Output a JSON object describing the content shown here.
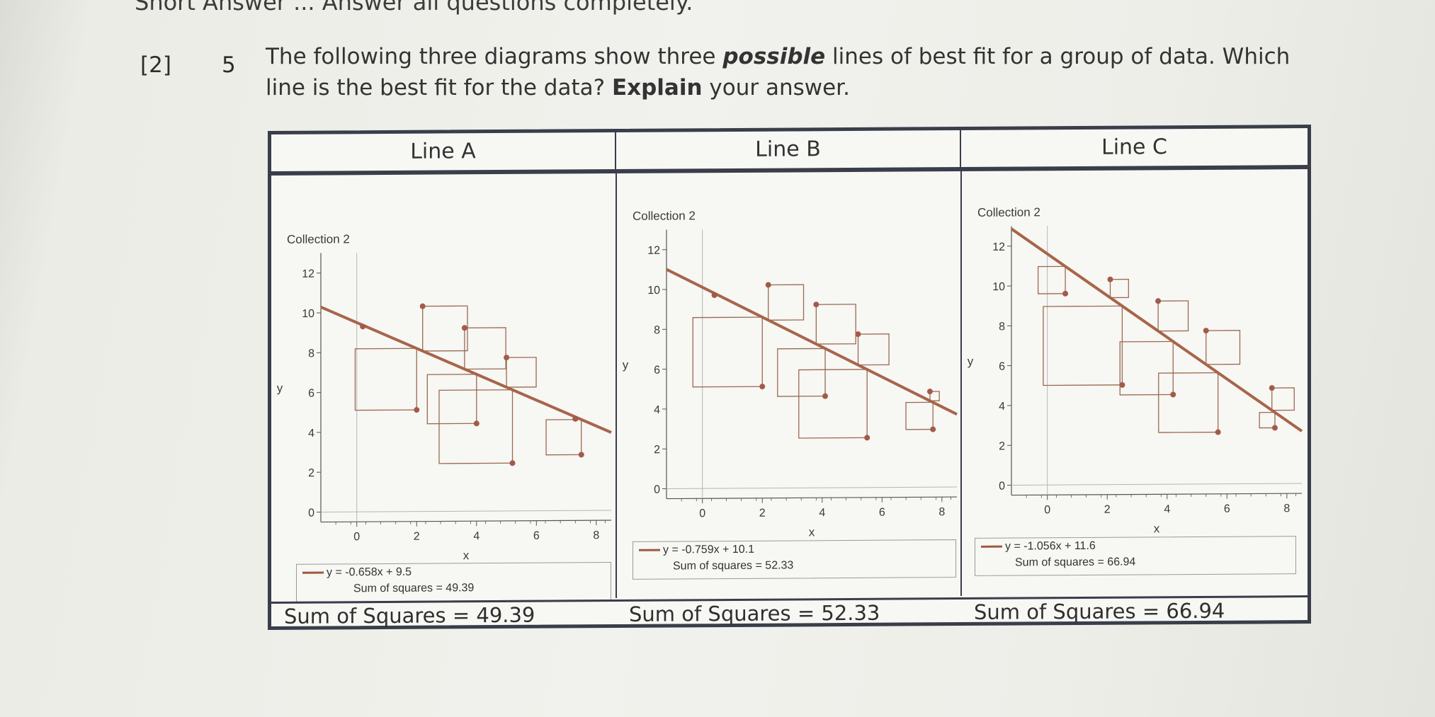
{
  "header_cut": "Short Answer ... Answer all questions completely.",
  "marks": "[2]",
  "question": {
    "number": "5",
    "part1": "The following three diagrams show three ",
    "emph": "possible",
    "part2": " lines of best fit for a group of data.  Which line is the best fit for the data? ",
    "bold": "Explain",
    "part3": "  your answer."
  },
  "colors": {
    "line": "#a7654a",
    "point": "#a35a4a",
    "square": "#9a6a50",
    "axis": "#555555",
    "table_border": "#3a3e4a"
  },
  "panels": [
    {
      "header": "Line A",
      "footer": "Sum of Squares = 49.39",
      "legend_eq": "y = -0.658x + 9.5",
      "legend_ss": "Sum of squares = 49.39",
      "collection": "Collection 2",
      "xlabel": "x",
      "ylabel": "y"
    },
    {
      "header": "Line B",
      "footer": "Sum of Squares = 52.33",
      "legend_eq": "y = -0.759x + 10.1",
      "legend_ss": "Sum of squares = 52.33",
      "collection": "Collection 2",
      "xlabel": "x",
      "ylabel": "y"
    },
    {
      "header": "Line C",
      "footer": "Sum of Squares = 66.94",
      "legend_eq": "y = -1.056x + 11.6",
      "legend_ss": "Sum of squares = 66.94",
      "collection": "Collection 2",
      "xlabel": "x",
      "ylabel": "y"
    }
  ],
  "chart_data": [
    {
      "type": "scatter",
      "title": "Collection 2",
      "xlabel": "x",
      "ylabel": "y",
      "xlim": [
        -1.2,
        8.5
      ],
      "ylim": [
        -0.5,
        13
      ],
      "x_ticks": [
        0,
        2,
        4,
        6,
        8
      ],
      "y_ticks": [
        0,
        2,
        4,
        6,
        8,
        10,
        12
      ],
      "x": [
        0.2,
        2.2,
        2,
        3.6,
        4,
        5,
        5.2,
        7.3,
        7.5
      ],
      "y": [
        9.3,
        10.3,
        5.1,
        9.2,
        4.4,
        7.7,
        2.4,
        4.6,
        2.8
      ],
      "fit_line": {
        "slope": -0.658,
        "intercept": 9.5
      },
      "legend_eq": "y = -0.658x + 9.5",
      "sum_of_squares": 49.39
    },
    {
      "type": "scatter",
      "title": "Collection 2",
      "xlabel": "x",
      "ylabel": "y",
      "xlim": [
        -1.2,
        8.5
      ],
      "ylim": [
        -0.5,
        13
      ],
      "x_ticks": [
        0,
        2,
        4,
        6,
        8
      ],
      "y_ticks": [
        0,
        2,
        4,
        6,
        8,
        10,
        12
      ],
      "x": [
        0.4,
        2.2,
        2,
        3.8,
        4.1,
        5.2,
        5.5,
        7.6,
        7.7
      ],
      "y": [
        9.7,
        10.2,
        5.1,
        9.2,
        4.6,
        7.7,
        2.5,
        4.8,
        2.9
      ],
      "fit_line": {
        "slope": -0.759,
        "intercept": 10.1
      },
      "legend_eq": "y = -0.759x + 10.1",
      "sum_of_squares": 52.33
    },
    {
      "type": "scatter",
      "title": "Collection 2",
      "xlabel": "x",
      "ylabel": "y",
      "xlim": [
        -1.2,
        8.5
      ],
      "ylim": [
        -0.5,
        13
      ],
      "x_ticks": [
        0,
        2,
        4,
        6,
        8
      ],
      "y_ticks": [
        0,
        2,
        4,
        6,
        8,
        10,
        12
      ],
      "x": [
        0.6,
        2.1,
        2.5,
        3.7,
        4.2,
        5.3,
        5.7,
        7.5,
        7.6
      ],
      "y": [
        9.6,
        10.3,
        5,
        9.2,
        4.5,
        7.7,
        2.6,
        4.8,
        2.8
      ],
      "fit_line": {
        "slope": -1.056,
        "intercept": 11.6
      },
      "legend_eq": "y = -1.056x + 11.6",
      "sum_of_squares": 66.94
    }
  ]
}
